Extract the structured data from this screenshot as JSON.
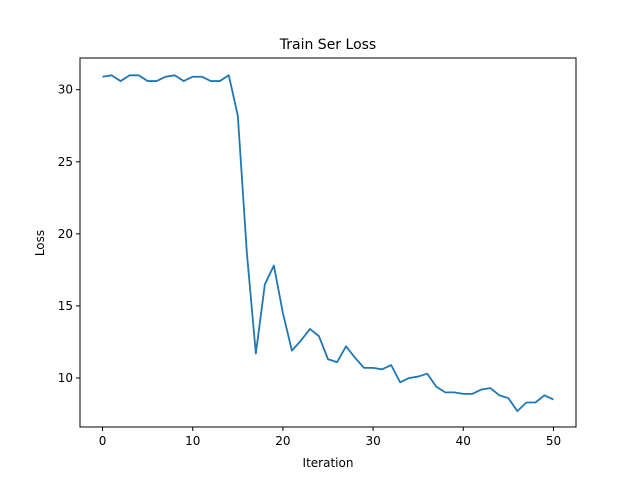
{
  "chart_data": {
    "type": "line",
    "title": "Train Ser Loss",
    "xlabel": "Iteration",
    "ylabel": "Loss",
    "xlim": [
      -2.5,
      52.5
    ],
    "ylim": [
      6.6,
      32.2
    ],
    "xticks": [
      0,
      10,
      20,
      30,
      40,
      50
    ],
    "yticks": [
      10,
      15,
      20,
      25,
      30
    ],
    "grid": false,
    "series": [
      {
        "color": "#1f77b4",
        "x": [
          0,
          1,
          2,
          3,
          4,
          5,
          6,
          7,
          8,
          9,
          10,
          11,
          12,
          13,
          14,
          15,
          16,
          17,
          18,
          19,
          20,
          21,
          22,
          23,
          24,
          25,
          26,
          27,
          28,
          29,
          30,
          31,
          32,
          33,
          34,
          35,
          36,
          37,
          38,
          39,
          40,
          41,
          42,
          43,
          44,
          45,
          46,
          47,
          48,
          49,
          50
        ],
        "values": [
          30.9,
          31.0,
          30.6,
          31.0,
          31.0,
          30.6,
          30.6,
          30.9,
          31.0,
          30.6,
          30.9,
          30.9,
          30.6,
          30.6,
          31.0,
          28.2,
          18.7,
          11.7,
          16.5,
          17.8,
          14.5,
          11.9,
          12.6,
          13.4,
          12.9,
          11.3,
          11.1,
          12.2,
          11.4,
          10.7,
          10.7,
          10.6,
          10.9,
          9.7,
          10.0,
          10.1,
          10.3,
          9.4,
          9.0,
          9.0,
          8.9,
          8.9,
          9.2,
          9.3,
          8.8,
          8.6,
          7.7,
          8.3,
          8.3,
          8.8,
          8.5
        ]
      }
    ]
  }
}
